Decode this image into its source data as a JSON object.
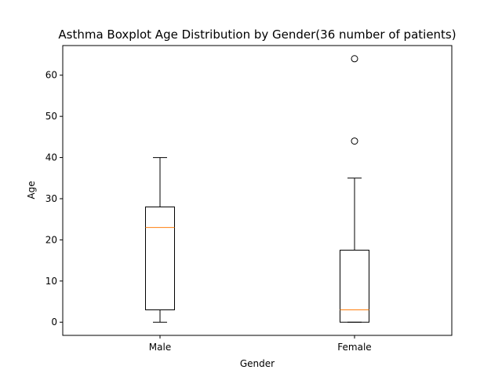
{
  "chart_data": {
    "type": "boxplot",
    "title": "Asthma Boxplot Age Distribution by Gender(36 number of patients)",
    "xlabel": "Gender",
    "ylabel": "Age",
    "categories": [
      "Male",
      "Female"
    ],
    "ylim": [
      -3.2,
      67.2
    ],
    "yticks": [
      0,
      10,
      20,
      30,
      40,
      50,
      60
    ],
    "grid": false,
    "legend": "none",
    "boxes": [
      {
        "category": "Male",
        "whisker_low": 0,
        "q1": 3,
        "median": 23,
        "q3": 28,
        "whisker_high": 40,
        "outliers": []
      },
      {
        "category": "Female",
        "whisker_low": 0,
        "q1": 0,
        "median": 3,
        "q3": 17.5,
        "whisker_high": 35,
        "outliers": [
          44,
          64
        ]
      }
    ],
    "colors": {
      "box": "#000000",
      "median": "#ff7f0e",
      "outlier": "#000000"
    }
  }
}
